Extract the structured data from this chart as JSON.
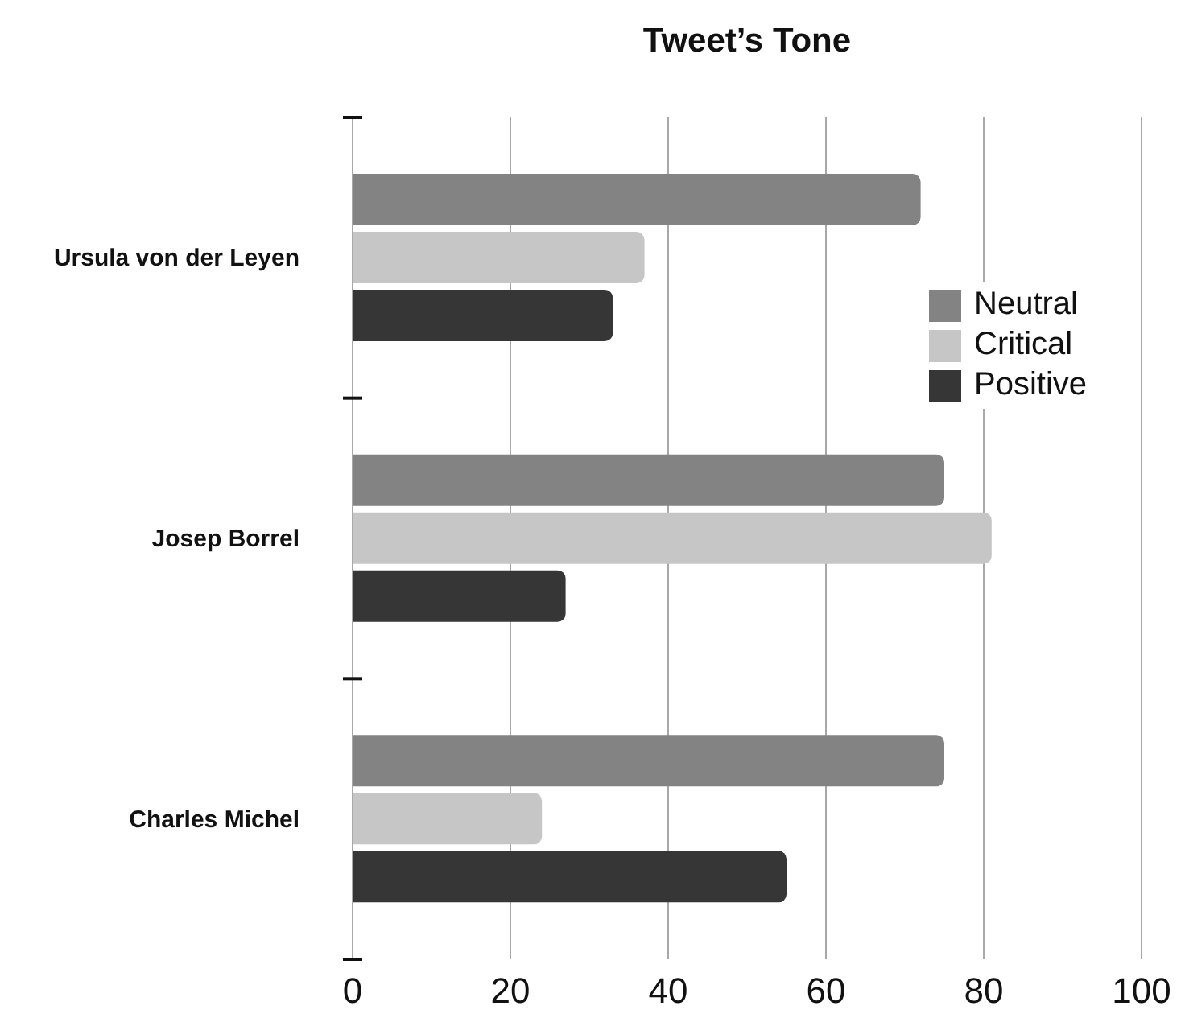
{
  "chart_data": {
    "type": "bar",
    "orientation": "horizontal",
    "title": "Tweet’s Tone",
    "categories": [
      "Ursula von der Leyen",
      "Josep Borrel",
      "Charles Michel"
    ],
    "series": [
      {
        "name": "Neutral",
        "color": "#838383",
        "values": [
          72,
          75,
          75
        ]
      },
      {
        "name": "Critical",
        "color": "#c6c6c6",
        "values": [
          37,
          81,
          24
        ]
      },
      {
        "name": "Positive",
        "color": "#363636",
        "values": [
          33,
          27,
          55
        ]
      }
    ],
    "xlim": [
      0,
      100
    ],
    "xticks": [
      0,
      20,
      40,
      60,
      80,
      100
    ],
    "grid": "x",
    "legend": "right"
  }
}
